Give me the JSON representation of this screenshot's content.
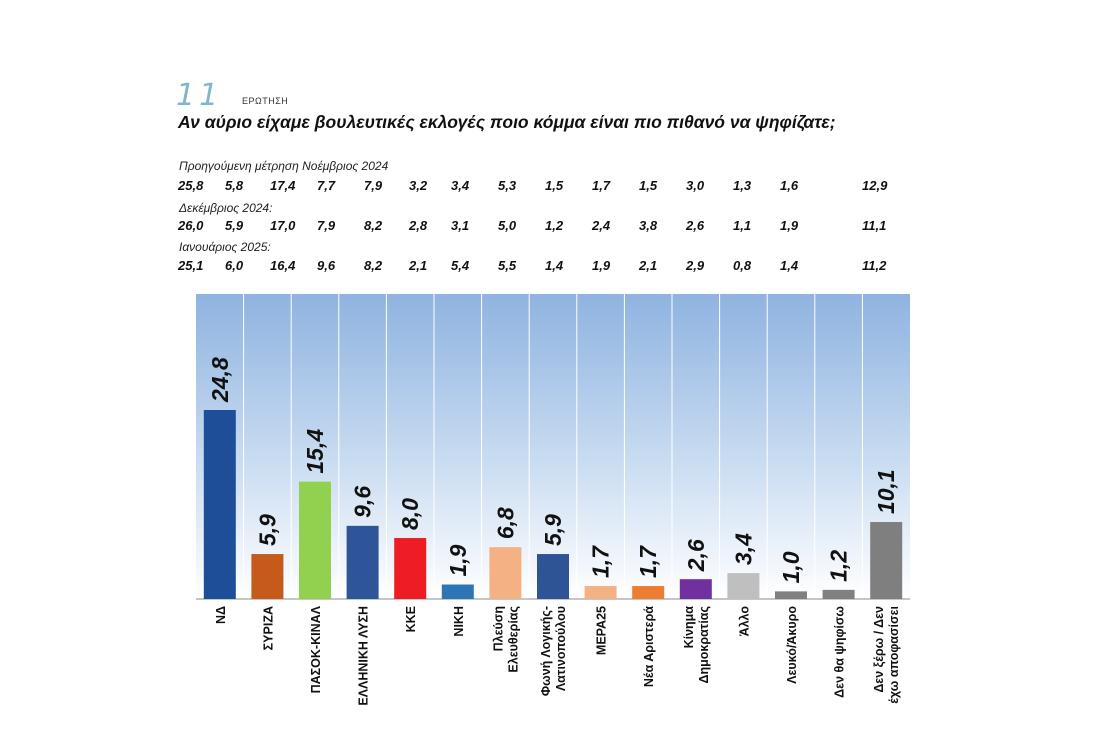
{
  "question": {
    "number": "11",
    "label": "ΕΡΩΤΗΣΗ",
    "title": "Αν αύριο είχαμε βουλευτικές εκλογές ποιο κόμμα είναι πιο πιθανό να ψηφίζατε;"
  },
  "previous": [
    {
      "label": "Προηγούμενη μέτρηση Νοέμβριος 2024",
      "values": [
        "25,8",
        "5,8",
        "17,4",
        "7,7",
        "7,9",
        "3,2",
        "3,4",
        "5,3",
        "1,5",
        "1,7",
        "1,5",
        "3,0",
        "1,3",
        "1,6",
        "12,9"
      ]
    },
    {
      "label": "Δεκέμβριος 2024:",
      "values": [
        "26,0",
        "5,9",
        "17,0",
        "7,9",
        "8,2",
        "2,8",
        "3,1",
        "5,0",
        "1,2",
        "2,4",
        "3,8",
        "2,6",
        "1,1",
        "1,9",
        "11,1"
      ]
    },
    {
      "label": "Ιανουάριος 2025:",
      "values": [
        "25,1",
        "6,0",
        "16,4",
        "9,6",
        "8,2",
        "2,1",
        "5,4",
        "5,5",
        "1,4",
        "1,9",
        "2,1",
        "2,9",
        "0,8",
        "1,4",
        "11,2"
      ]
    }
  ],
  "chart_data": {
    "type": "bar",
    "categories": [
      [
        "ΝΔ"
      ],
      [
        "ΣΥΡΙΖΑ"
      ],
      [
        "ΠΑΣΟΚ-ΚΙΝΑΛ"
      ],
      [
        "ΕΛΛΗΝΙΚΗ ΛΥΣΗ"
      ],
      [
        "ΚΚΕ"
      ],
      [
        "ΝΙΚΗ"
      ],
      [
        "Πλεύση",
        "Ελευθερίας"
      ],
      [
        "Φωνή Λογικής-",
        "Λατινοπούλου"
      ],
      [
        "ΜΕΡΑ25"
      ],
      [
        "Νέα Αριστερά"
      ],
      [
        "Κίνημα",
        "Δημοκρατίας"
      ],
      [
        "Άλλο"
      ],
      [
        "Λευκό/Άκυρο"
      ],
      [
        "Δεν θα ψηφίσω"
      ],
      [
        "Δεν ξέρω / Δεν",
        "έχω αποφασίσει"
      ]
    ],
    "values": [
      24.8,
      5.9,
      15.4,
      9.6,
      8.0,
      1.9,
      6.8,
      5.9,
      1.7,
      1.7,
      2.6,
      3.4,
      1.0,
      1.2,
      10.1
    ],
    "labels": [
      "24,8",
      "5,9",
      "15,4",
      "9,6",
      "8,0",
      "1,9",
      "6,8",
      "5,9",
      "1,7",
      "1,7",
      "2,6",
      "3,4",
      "1,0",
      "1,2",
      "10,1"
    ],
    "colors": [
      "#1f4e99",
      "#c55a1b",
      "#92d050",
      "#2e5597",
      "#ee1d23",
      "#2e75b6",
      "#f4b183",
      "#2f5496",
      "#f4b183",
      "#ed7d31",
      "#7030a0",
      "#bfbfbf",
      "#808080",
      "#808080",
      "#7f7f7f"
    ],
    "ylim": [
      0,
      30
    ],
    "grid": false,
    "legend": "none"
  }
}
